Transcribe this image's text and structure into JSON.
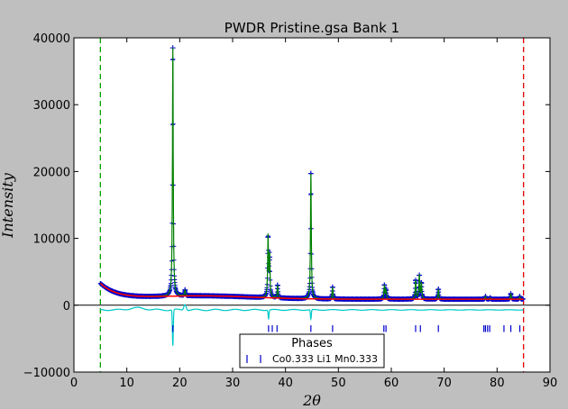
{
  "chart_data": {
    "type": "line",
    "title": "PWDR Pristine.gsa Bank 1",
    "xlabel": "2θ",
    "ylabel": "Intensity",
    "xlim": [
      0,
      90
    ],
    "ylim": [
      -10000,
      40000
    ],
    "x_ticks": [
      0,
      10,
      20,
      30,
      40,
      50,
      60,
      70,
      80,
      90
    ],
    "y_ticks": [
      -10000,
      0,
      10000,
      20000,
      30000,
      40000
    ],
    "x_tick_labels": [
      "0",
      "10",
      "20",
      "30",
      "40",
      "50",
      "60",
      "70",
      "80",
      "90"
    ],
    "y_tick_labels": [
      "−10000",
      "0",
      "10000",
      "20000",
      "30000",
      "40000"
    ],
    "grid": false,
    "range_limits": [
      {
        "x": 5,
        "color": "#00a000"
      },
      {
        "x": 85,
        "color": "#e00000"
      }
    ],
    "peaks": [
      {
        "x": 18.7,
        "y": 38500
      },
      {
        "x": 21.0,
        "y": 2300
      },
      {
        "x": 36.7,
        "y": 10200
      },
      {
        "x": 37.0,
        "y": 7200
      },
      {
        "x": 38.5,
        "y": 3000
      },
      {
        "x": 44.8,
        "y": 19700
      },
      {
        "x": 48.9,
        "y": 2700
      },
      {
        "x": 58.7,
        "y": 3000
      },
      {
        "x": 59.0,
        "y": 2300
      },
      {
        "x": 64.6,
        "y": 3700
      },
      {
        "x": 65.3,
        "y": 4500
      },
      {
        "x": 65.7,
        "y": 3300
      },
      {
        "x": 68.9,
        "y": 2400
      },
      {
        "x": 77.8,
        "y": 1300
      },
      {
        "x": 78.7,
        "y": 1100
      },
      {
        "x": 82.6,
        "y": 1700
      },
      {
        "x": 84.3,
        "y": 1300
      }
    ],
    "series": [
      {
        "name": "observed",
        "color": "#0000cc",
        "marker": "+"
      },
      {
        "name": "calculated",
        "color": "#008000"
      },
      {
        "name": "background",
        "color": "#ff0000"
      },
      {
        "name": "difference",
        "color": "#00c8c8",
        "offset": -700
      }
    ],
    "reflections": {
      "phase": "Co0.333 Li1 Mn0.333",
      "color": "#0000cc",
      "positions": [
        18.7,
        36.8,
        37.5,
        38.4,
        44.8,
        48.9,
        58.6,
        59.0,
        64.6,
        65.5,
        68.9,
        77.5,
        77.8,
        78.2,
        78.6,
        81.3,
        82.6,
        84.3
      ]
    },
    "legend": {
      "title": "Phases",
      "placement": "lower-center"
    }
  }
}
